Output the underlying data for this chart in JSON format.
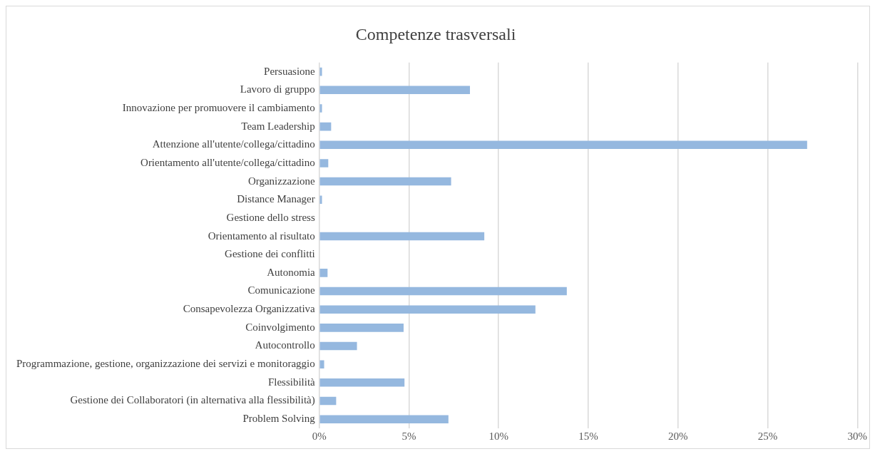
{
  "chart_data": {
    "type": "bar",
    "orientation": "horizontal",
    "title": "Competenze trasversali",
    "categories": [
      "Persuasione",
      "Lavoro di gruppo",
      "Innovazione per promuovere il cambiamento",
      "Team Leadership",
      "Attenzione all'utente/collega/cittadino",
      "Orientamento all'utente/collega/cittadino",
      "Organizzazione",
      "Distance Manager",
      "Gestione dello stress",
      "Orientamento al risultato",
      "Gestione dei conflitti",
      "Autonomia",
      "Comunicazione",
      "Consapevolezza Organizzativa",
      "Coinvolgimento",
      "Autocontrollo",
      "Programmazione, gestione, organizzazione dei servizi e monitoraggio",
      "Flessibilità",
      "Gestione dei Collaboratori (in alternativa alla flessibilità)",
      "Problem Solving"
    ],
    "values": [
      0.15,
      8.4,
      0.15,
      0.66,
      27.2,
      0.5,
      7.35,
      0.15,
      0,
      9.2,
      0,
      0.46,
      13.8,
      12.05,
      4.7,
      2.1,
      0.27,
      4.75,
      0.94,
      7.2
    ],
    "color": "#95b8df",
    "xlim": [
      0,
      30
    ],
    "xticks": [
      {
        "value": 0,
        "label": "0%"
      },
      {
        "value": 5,
        "label": "5%"
      },
      {
        "value": 10,
        "label": "10%"
      },
      {
        "value": 15,
        "label": "15%"
      },
      {
        "value": 20,
        "label": "20%"
      },
      {
        "value": 25,
        "label": "25%"
      },
      {
        "value": 30,
        "label": "30%"
      }
    ],
    "grid": "x"
  }
}
